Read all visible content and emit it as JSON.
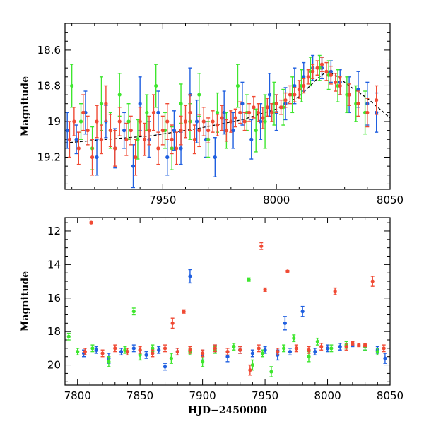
{
  "chart_data": [
    {
      "type": "scatter",
      "panel": "top",
      "xlabel": "",
      "ylabel": "Magnitude",
      "xlim": [
        7907,
        8050
      ],
      "ylim": [
        19.38,
        18.45
      ],
      "y_inverted": true,
      "xticks": [
        7950,
        8000,
        8050
      ],
      "xtick_labels": [
        "7950",
        "8000",
        "8050"
      ],
      "yticks": [
        18.6,
        18.8,
        19.0,
        19.2
      ],
      "ytick_labels": [
        "18.6",
        "18.8",
        "19",
        "19.2"
      ],
      "error_bars": true,
      "series": [
        {
          "color": "#1f5fe0",
          "x": [
            7908,
            7912,
            7916,
            7921,
            7925,
            7929,
            7933,
            7937,
            7940,
            7944,
            7948,
            7952,
            7955,
            7958,
            7962,
            7965,
            7969,
            7973,
            7977,
            7981,
            7985,
            7989,
            7993,
            7997,
            8000,
            8004,
            8008,
            8012,
            8016,
            8020,
            8024,
            8028,
            8032,
            8036,
            8040,
            8044
          ],
          "y": [
            19.05,
            19.1,
            18.95,
            19.2,
            19.0,
            19.15,
            19.05,
            19.25,
            18.9,
            19.1,
            18.95,
            19.2,
            19.05,
            19.15,
            18.85,
            19.0,
            19.1,
            19.2,
            18.95,
            19.05,
            18.9,
            19.1,
            19.0,
            18.85,
            18.95,
            18.9,
            18.8,
            18.75,
            18.7,
            18.7,
            18.72,
            18.78,
            18.85,
            18.82,
            18.9,
            18.95
          ],
          "err": [
            0.1,
            0.08,
            0.12,
            0.1,
            0.09,
            0.11,
            0.1,
            0.12,
            0.15,
            0.1,
            0.12,
            0.1,
            0.11,
            0.09,
            0.15,
            0.12,
            0.1,
            0.11,
            0.12,
            0.1,
            0.12,
            0.11,
            0.1,
            0.12,
            0.1,
            0.09,
            0.1,
            0.08,
            0.07,
            0.06,
            0.06,
            0.07,
            0.1,
            0.1,
            0.12,
            0.11
          ]
        },
        {
          "color": "#3ee62e",
          "x": [
            7910,
            7914,
            7919,
            7923,
            7927,
            7931,
            7935,
            7939,
            7943,
            7947,
            7951,
            7954,
            7958,
            7962,
            7966,
            7970,
            7974,
            7978,
            7983,
            7987,
            7991,
            7995,
            7999,
            8003,
            8007,
            8011,
            8015,
            8019,
            8023,
            8027,
            8031,
            8035,
            8039
          ],
          "y": [
            18.8,
            19.0,
            19.15,
            18.9,
            19.05,
            18.85,
            19.0,
            19.1,
            18.95,
            18.8,
            19.05,
            19.15,
            18.9,
            19.0,
            18.85,
            19.1,
            18.95,
            19.05,
            18.8,
            18.95,
            19.05,
            19.0,
            18.9,
            18.92,
            18.85,
            18.8,
            18.72,
            18.7,
            18.74,
            18.8,
            18.85,
            18.9,
            18.95
          ],
          "err": [
            0.12,
            0.1,
            0.12,
            0.15,
            0.1,
            0.12,
            0.1,
            0.11,
            0.1,
            0.12,
            0.1,
            0.12,
            0.11,
            0.1,
            0.12,
            0.1,
            0.11,
            0.1,
            0.12,
            0.1,
            0.12,
            0.15,
            0.12,
            0.1,
            0.1,
            0.09,
            0.08,
            0.07,
            0.08,
            0.09,
            0.1,
            0.1,
            0.12
          ]
        },
        {
          "color": "#f04a34",
          "x": [
            7909,
            7911,
            7913,
            7915,
            7917,
            7919,
            7921,
            7923,
            7925,
            7927,
            7929,
            7931,
            7934,
            7936,
            7938,
            7940,
            7942,
            7944,
            7946,
            7948,
            7950,
            7952,
            7954,
            7956,
            7958,
            7960,
            7962,
            7964,
            7966,
            7968,
            7970,
            7972,
            7974,
            7976,
            7978,
            7980,
            7982,
            7984,
            7986,
            7988,
            7990,
            7992,
            7994,
            7996,
            7998,
            8000,
            8002,
            8004,
            8006,
            8008,
            8010,
            8012,
            8014,
            8016,
            8018,
            8020,
            8022,
            8024,
            8026,
            8028,
            8032,
            8036,
            8040,
            8044
          ],
          "y": [
            19.1,
            19.0,
            19.15,
            18.95,
            19.05,
            19.2,
            19.0,
            19.1,
            18.9,
            19.05,
            19.15,
            19.0,
            19.1,
            19.05,
            19.2,
            19.0,
            19.1,
            19.05,
            18.95,
            19.15,
            19.05,
            19.0,
            19.1,
            19.15,
            19.05,
            19.0,
            18.95,
            19.1,
            19.05,
            19.0,
            19.05,
            19.0,
            19.02,
            18.98,
            19.05,
            19.0,
            18.98,
            18.95,
            19.0,
            18.95,
            18.92,
            18.95,
            18.98,
            18.92,
            18.95,
            18.9,
            18.92,
            18.88,
            18.85,
            18.85,
            18.82,
            18.8,
            18.75,
            18.72,
            18.7,
            18.68,
            18.72,
            18.74,
            18.78,
            18.8,
            18.85,
            18.9,
            18.95,
            18.88
          ],
          "err": [
            0.1,
            0.08,
            0.09,
            0.1,
            0.08,
            0.1,
            0.09,
            0.08,
            0.1,
            0.09,
            0.1,
            0.08,
            0.09,
            0.08,
            0.1,
            0.08,
            0.09,
            0.08,
            0.1,
            0.09,
            0.08,
            0.1,
            0.08,
            0.09,
            0.08,
            0.09,
            0.1,
            0.08,
            0.09,
            0.08,
            0.07,
            0.06,
            0.06,
            0.07,
            0.06,
            0.06,
            0.05,
            0.06,
            0.05,
            0.05,
            0.06,
            0.05,
            0.06,
            0.05,
            0.05,
            0.05,
            0.04,
            0.04,
            0.05,
            0.04,
            0.05,
            0.04,
            0.04,
            0.04,
            0.04,
            0.04,
            0.05,
            0.05,
            0.05,
            0.05,
            0.06,
            0.07,
            0.08,
            0.08
          ]
        }
      ],
      "model_curve": {
        "color": "#000000",
        "x": [
          7907,
          7925,
          7945,
          7965,
          7985,
          8000,
          8010,
          8018,
          8022,
          8026,
          8032,
          8040,
          8050
        ],
        "y": [
          19.12,
          19.1,
          19.08,
          19.04,
          18.99,
          18.93,
          18.86,
          18.76,
          18.72,
          18.74,
          18.8,
          18.87,
          18.98
        ]
      }
    },
    {
      "type": "scatter",
      "panel": "bottom",
      "xlabel": "HJD−2450000",
      "ylabel": "Magnitude",
      "xlim": [
        7790,
        8050
      ],
      "ylim": [
        21.2,
        11.2
      ],
      "y_inverted": true,
      "xticks": [
        7800,
        7850,
        7900,
        7950,
        8000,
        8050
      ],
      "xtick_labels": [
        "7800",
        "7850",
        "7900",
        "7950",
        "8000",
        "8050"
      ],
      "yticks": [
        12,
        14,
        16,
        18,
        20
      ],
      "ytick_labels": [
        "12",
        "14",
        "16",
        "18",
        "20"
      ],
      "error_bars": true,
      "series": [
        {
          "color": "#1f5fe0",
          "x": [
            7805,
            7815,
            7825,
            7835,
            7845,
            7855,
            7865,
            7870,
            7880,
            7890,
            7900,
            7910,
            7920,
            7930,
            7940,
            7950,
            7960,
            7966,
            7970,
            7980,
            7990,
            8000,
            8010,
            8020,
            8030,
            8040,
            8046
          ],
          "y": [
            19.3,
            19.1,
            19.6,
            19.2,
            19.0,
            19.4,
            19.1,
            20.1,
            19.2,
            14.7,
            19.4,
            19.0,
            19.5,
            19.1,
            19.3,
            19.1,
            19.4,
            17.5,
            19.2,
            16.8,
            19.2,
            19.0,
            18.9,
            18.8,
            18.9,
            19.1,
            19.6
          ],
          "err": [
            0.2,
            0.2,
            0.3,
            0.2,
            0.2,
            0.2,
            0.2,
            0.2,
            0.2,
            0.4,
            0.3,
            0.2,
            0.3,
            0.2,
            0.2,
            0.2,
            0.3,
            0.4,
            0.2,
            0.3,
            0.2,
            0.2,
            0.2,
            0.1,
            0.2,
            0.2,
            0.3
          ]
        },
        {
          "color": "#3ee62e",
          "x": [
            7793,
            7800,
            7812,
            7825,
            7838,
            7845,
            7850,
            7860,
            7875,
            7890,
            7900,
            7910,
            7925,
            7937,
            7940,
            7948,
            7955,
            7965,
            7973,
            7985,
            7992,
            8003,
            8015,
            8030,
            8040
          ],
          "y": [
            18.3,
            19.2,
            19.0,
            19.8,
            19.1,
            16.8,
            19.4,
            19.0,
            19.6,
            19.2,
            19.8,
            19.1,
            18.9,
            14.9,
            20.0,
            19.3,
            20.4,
            19.0,
            18.4,
            19.5,
            18.6,
            19.0,
            18.8,
            18.9,
            19.2
          ],
          "err": [
            0.2,
            0.2,
            0.2,
            0.3,
            0.2,
            0.2,
            0.3,
            0.2,
            0.3,
            0.2,
            0.3,
            0.2,
            0.2,
            0.1,
            0.3,
            0.2,
            0.3,
            0.2,
            0.2,
            0.3,
            0.2,
            0.2,
            0.2,
            0.2,
            0.2
          ],
          "points": [
            [
              7793,
              18.3
            ],
            [
              7800,
              19.2
            ],
            [
              7812,
              19.0
            ],
            [
              7825,
              19.8
            ],
            [
              7838,
              19.1
            ],
            [
              7845,
              16.8
            ],
            [
              7850,
              19.4
            ],
            [
              7860,
              19.0
            ],
            [
              7875,
              19.6
            ],
            [
              7890,
              19.2
            ],
            [
              7900,
              19.8
            ],
            [
              7910,
              19.1
            ],
            [
              7925,
              18.9
            ],
            [
              7937,
              14.9
            ],
            [
              7940,
              20.0
            ],
            [
              7948,
              19.3
            ],
            [
              7955,
              20.4
            ],
            [
              7965,
              19.0
            ],
            [
              7973,
              18.4
            ],
            [
              7985,
              19.5
            ],
            [
              7992,
              18.6
            ],
            [
              8003,
              19.0
            ],
            [
              8015,
              18.8
            ],
            [
              8030,
              18.9
            ],
            [
              8040,
              19.2
            ]
          ]
        },
        {
          "color": "#f04a34",
          "x": [
            7806,
            7811,
            7820,
            7830,
            7840,
            7850,
            7860,
            7870,
            7876,
            7880,
            7885,
            7890,
            7900,
            7910,
            7920,
            7930,
            7938,
            7945,
            7947,
            7950,
            7960,
            7968,
            7975,
            7985,
            7995,
            8006,
            8015,
            8020,
            8025,
            8030,
            8036,
            8045
          ],
          "y": [
            19.2,
            11.5,
            19.3,
            19.0,
            19.2,
            19.1,
            19.3,
            19.0,
            17.5,
            19.2,
            16.8,
            19.1,
            19.3,
            19.0,
            19.2,
            19.1,
            20.3,
            19.0,
            12.9,
            15.5,
            19.2,
            14.4,
            19.0,
            19.1,
            18.9,
            15.6,
            18.9,
            18.7,
            18.8,
            18.8,
            15.0,
            19.0
          ],
          "err": [
            0.2,
            0.05,
            0.2,
            0.2,
            0.2,
            0.2,
            0.2,
            0.2,
            0.3,
            0.2,
            0.1,
            0.2,
            0.2,
            0.2,
            0.2,
            0.2,
            0.3,
            0.2,
            0.2,
            0.1,
            0.2,
            0.05,
            0.2,
            0.2,
            0.2,
            0.2,
            0.2,
            0.1,
            0.1,
            0.1,
            0.3,
            0.2
          ]
        }
      ]
    }
  ]
}
